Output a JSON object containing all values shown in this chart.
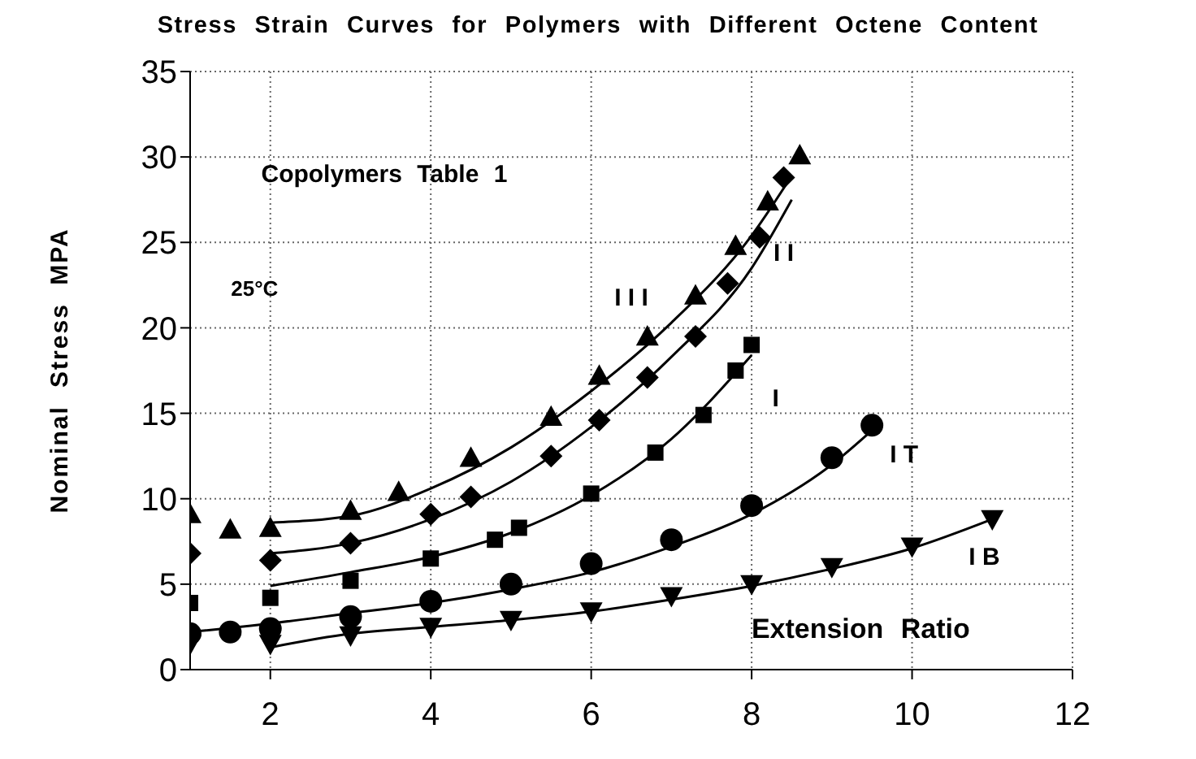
{
  "chart_data": {
    "type": "scatter",
    "title": "Stress Strain Curves for Polymers with Different Octene Content",
    "xlabel": "Extension Ratio",
    "ylabel": "Nominal Stress MPA",
    "xlim": [
      1,
      12
    ],
    "xticks": [
      2,
      4,
      6,
      8,
      10,
      12
    ],
    "ylim": [
      0,
      35
    ],
    "yticks": [
      0,
      5,
      10,
      15,
      20,
      25,
      30,
      35
    ],
    "grid": true,
    "annotations": [
      "Copolymers Table 1",
      "25°C"
    ],
    "series": [
      {
        "marker": "triangle",
        "color": "#000000",
        "x": [
          1,
          1.5,
          2,
          3,
          3.6,
          4.5,
          5.5,
          6.1,
          6.7,
          7.3,
          7.8,
          8.2,
          8.6
        ],
        "values": [
          9.1,
          8.2,
          8.3,
          9.3,
          10.4,
          12.4,
          14.8,
          17.2,
          19.5,
          21.9,
          24.8,
          27.4,
          30.1
        ]
      },
      {
        "marker": "diamond",
        "color": "#000000",
        "x": [
          1,
          2,
          3,
          4,
          4.5,
          5.5,
          6.1,
          6.7,
          7.3,
          7.7,
          8.1,
          8.4
        ],
        "values": [
          6.8,
          6.4,
          7.4,
          9.1,
          10.1,
          12.5,
          14.6,
          17.1,
          19.5,
          22.6,
          25.3,
          28.8
        ]
      },
      {
        "marker": "square",
        "color": "#000000",
        "x": [
          1,
          2,
          3,
          4,
          4.8,
          5.1,
          6,
          6.8,
          7.4,
          7.8,
          8
        ],
        "values": [
          3.9,
          4.2,
          5.2,
          6.5,
          7.6,
          8.3,
          10.3,
          12.7,
          14.9,
          17.5,
          19
        ]
      },
      {
        "marker": "circle",
        "color": "#000000",
        "x": [
          1,
          1.5,
          2,
          3,
          4,
          5,
          6,
          7,
          8,
          9,
          9.5
        ],
        "values": [
          2.1,
          2.2,
          2.4,
          3.1,
          4,
          5,
          6.2,
          7.6,
          9.6,
          12.4,
          14.3
        ]
      },
      {
        "marker": "triangle-down",
        "color": "#000000",
        "x": [
          1,
          2,
          3,
          4,
          5,
          6,
          7,
          8,
          9,
          10,
          11
        ],
        "values": [
          1.5,
          1.5,
          2,
          2.5,
          2.9,
          3.4,
          4.3,
          5,
          6,
          7.2,
          8.8
        ]
      },
      {
        "type": "line",
        "name": "I I I",
        "marker": "none",
        "line_style": "solid",
        "color": "#000000",
        "x": [
          2,
          3,
          4,
          5,
          6,
          7,
          8,
          8.5
        ],
        "values": [
          8.6,
          9,
          10.6,
          13,
          16.3,
          20.3,
          25.4,
          28.9
        ]
      },
      {
        "type": "line",
        "name": "I I",
        "marker": "none",
        "line_style": "solid",
        "color": "#000000",
        "x": [
          2,
          3,
          4,
          5,
          6,
          7,
          8,
          8.5
        ],
        "values": [
          6.8,
          7.4,
          8.8,
          11,
          14.2,
          18.3,
          23.5,
          27.5
        ]
      },
      {
        "type": "line",
        "name": "I",
        "marker": "none",
        "line_style": "solid",
        "color": "#000000",
        "x": [
          2,
          3,
          4,
          5,
          6,
          7,
          8
        ],
        "values": [
          4.9,
          5.7,
          6.6,
          8,
          10.2,
          13.5,
          18.4
        ]
      },
      {
        "type": "line",
        "name": "I T",
        "marker": "none",
        "line_style": "solid",
        "color": "#000000",
        "x": [
          1,
          2,
          3,
          4,
          5,
          6,
          7,
          8,
          9,
          9.5
        ],
        "values": [
          2.2,
          2.7,
          3.3,
          3.9,
          4.7,
          5.7,
          7.2,
          9.1,
          12,
          14
        ]
      },
      {
        "type": "line",
        "name": "I B",
        "marker": "none",
        "line_style": "solid",
        "color": "#000000",
        "x": [
          2,
          3,
          4,
          5,
          6,
          7,
          8,
          9,
          10,
          11
        ],
        "values": [
          1.3,
          2.1,
          2.5,
          2.9,
          3.4,
          4.1,
          4.9,
          5.9,
          7.1,
          8.8
        ]
      }
    ]
  }
}
